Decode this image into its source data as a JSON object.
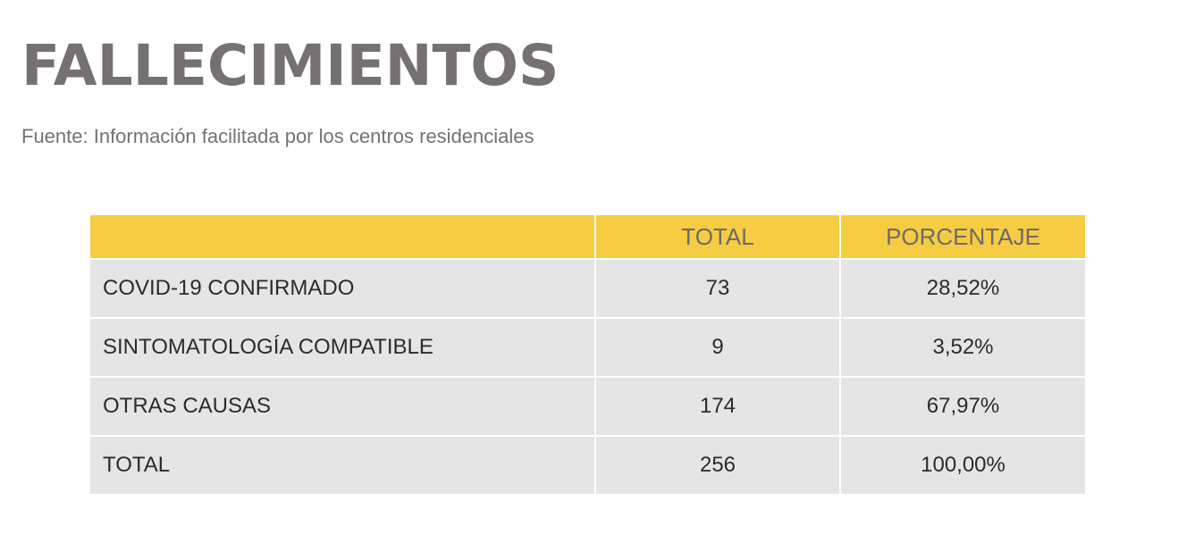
{
  "title": "FALLECIMIENTOS",
  "source": "Fuente: Información facilitada por los centros residenciales",
  "colors": {
    "title_text": "#767171",
    "header_background": "#f6cc43",
    "header_text": "#6f6b6b",
    "row_background": "#e5e5e5",
    "row_text": "#2b2b2b"
  },
  "table": {
    "headers": [
      "",
      "TOTAL",
      "PORCENTAJE"
    ],
    "rows": [
      {
        "label": "COVID-19 CONFIRMADO",
        "total": "73",
        "porcentaje": "28,52%"
      },
      {
        "label": "SINTOMATOLOGÍA COMPATIBLE",
        "total": "9",
        "porcentaje": "3,52%"
      },
      {
        "label": "OTRAS CAUSAS",
        "total": "174",
        "porcentaje": "67,97%"
      },
      {
        "label": "TOTAL",
        "total": "256",
        "porcentaje": "100,00%"
      }
    ]
  }
}
